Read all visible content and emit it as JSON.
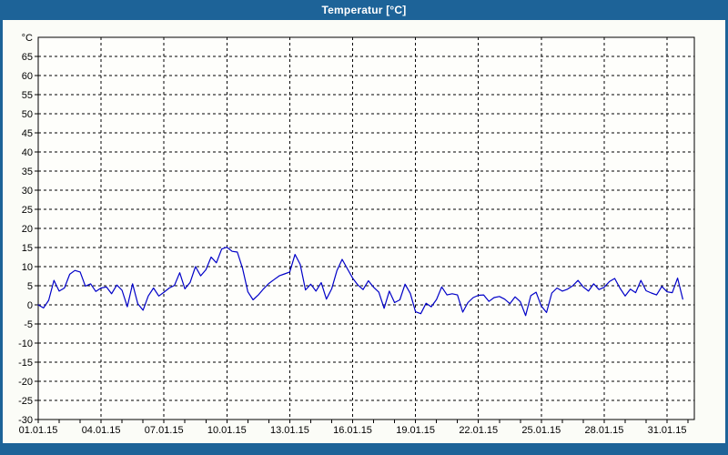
{
  "window": {
    "title": "Temperatur [°C]"
  },
  "colors": {
    "frame_blue": "#1d6398",
    "titlebar_text": "#ffffff",
    "window_bg": "#fbfcf7",
    "plot_bg": "#fefefb",
    "line": "#0000c8",
    "grid": "#000000",
    "axis": "#000000"
  },
  "chart_data": {
    "type": "line",
    "title": "Temperatur [°C]",
    "xlabel": "",
    "ylabel": "°C",
    "ylim": [
      -30,
      70
    ],
    "x_range_days": [
      1,
      32.3
    ],
    "grid": "dashed",
    "legend": "none",
    "y_ticks": [
      -30,
      -25,
      -20,
      -15,
      -10,
      -5,
      0,
      5,
      10,
      15,
      20,
      25,
      30,
      35,
      40,
      45,
      50,
      55,
      60,
      65
    ],
    "x_tick_labels": [
      {
        "day": 1,
        "label": "01.01.15"
      },
      {
        "day": 4,
        "label": "04.01.15"
      },
      {
        "day": 7,
        "label": "07.01.15"
      },
      {
        "day": 10,
        "label": "10.01.15"
      },
      {
        "day": 13,
        "label": "13.01.15"
      },
      {
        "day": 16,
        "label": "16.01.15"
      },
      {
        "day": 19,
        "label": "19.01.15"
      },
      {
        "day": 22,
        "label": "22.01.15"
      },
      {
        "day": 25,
        "label": "25.01.15"
      },
      {
        "day": 28,
        "label": "28.01.15"
      },
      {
        "day": 31,
        "label": "31.01.15"
      }
    ],
    "x_minor_tick_step_days": 1,
    "series": [
      {
        "name": "Temperatur",
        "color": "#0000c8",
        "x_start_day": 1,
        "x_step_days": 0.25,
        "values": [
          0.0,
          -0.8,
          1.2,
          6.4,
          3.6,
          4.4,
          8.0,
          9.0,
          8.6,
          4.9,
          5.5,
          3.5,
          4.4,
          4.7,
          2.9,
          5.2,
          3.8,
          -0.5,
          5.5,
          0.3,
          -1.4,
          2.3,
          4.4,
          2.3,
          3.3,
          4.4,
          5.1,
          8.4,
          4.2,
          5.9,
          10.0,
          7.6,
          9.2,
          12.5,
          11.0,
          14.6,
          15.1,
          14.0,
          13.8,
          9.5,
          3.4,
          1.3,
          2.6,
          4.2,
          5.6,
          6.6,
          7.6,
          8.1,
          8.6,
          13.2,
          10.6,
          3.9,
          5.4,
          3.6,
          5.8,
          1.5,
          4.2,
          9.0,
          11.9,
          9.4,
          7.0,
          5.2,
          4.0,
          6.3,
          4.6,
          3.3,
          -0.9,
          3.6,
          0.6,
          1.3,
          5.4,
          3.0,
          -1.8,
          -2.3,
          0.4,
          -0.5,
          1.4,
          4.7,
          2.6,
          2.9,
          2.6,
          -1.9,
          0.6,
          1.9,
          2.5,
          2.6,
          0.9,
          1.9,
          2.2,
          1.5,
          0.3,
          2.1,
          0.8,
          -2.8,
          2.4,
          3.3,
          -0.3,
          -2.0,
          3.1,
          4.4,
          3.6,
          4.1,
          5.0,
          6.4,
          4.7,
          3.6,
          5.5,
          4.0,
          4.6,
          6.1,
          6.9,
          4.4,
          2.3,
          4.1,
          3.2,
          6.4,
          3.7,
          3.1,
          2.6,
          4.8,
          3.4,
          3.2,
          7.0,
          1.5
        ]
      }
    ]
  }
}
